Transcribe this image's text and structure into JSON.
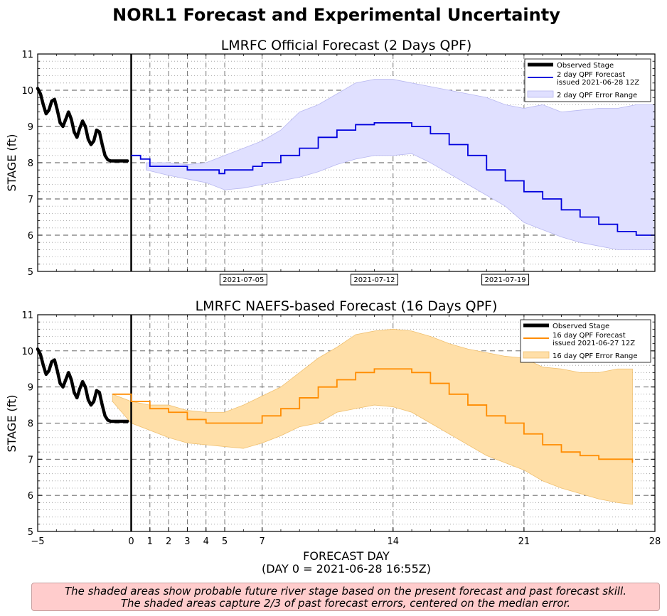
{
  "title": "NORL1 Forecast and Experimental Uncertainty",
  "note": {
    "line1": "The shaded areas show probable future river stage based on the present forecast and past forecast skill.",
    "line2": "The shaded areas capture 2/3 of past forecast errors, centered on the median error."
  },
  "xlabel": "FORECAST DAY",
  "xlabel2": "(DAY 0 = 2021-06-28 16:55Z)",
  "colors": {
    "observed": "#000000",
    "forecast2": "#0000dd",
    "band2": "#e0e0ff",
    "band2_edge": "#b8b8f0",
    "forecast16": "#ff8c00",
    "band16": "#ffdfa8",
    "band16_edge": "#f0c070"
  },
  "chart_data": [
    {
      "type": "line",
      "title": "LMRFC Official Forecast (2 Days QPF)",
      "ylabel": "STAGE (ft)",
      "xlim": [
        -5,
        28
      ],
      "ylim": [
        5,
        11
      ],
      "yticks": [
        5,
        6,
        7,
        8,
        9,
        10,
        11
      ],
      "xticks": [],
      "date_markers": [
        {
          "day": 6,
          "label": "2021-07-05"
        },
        {
          "day": 13,
          "label": "2021-07-12"
        },
        {
          "day": 20,
          "label": "2021-07-19"
        }
      ],
      "vlines_dashed": [
        1,
        2,
        3,
        4,
        5,
        7,
        14,
        21
      ],
      "grid": true,
      "legend": {
        "placement": "top-right",
        "entries": [
          "Observed Stage",
          "2 day QPF Forecast",
          "issued 2021-06-28 12Z",
          "2 day QPF Error Range"
        ]
      },
      "observed": {
        "name": "Observed Stage",
        "x": [
          -5,
          -4.85,
          -4.7,
          -4.55,
          -4.4,
          -4.25,
          -4.1,
          -3.95,
          -3.8,
          -3.65,
          -3.5,
          -3.35,
          -3.2,
          -3.05,
          -2.9,
          -2.75,
          -2.6,
          -2.45,
          -2.3,
          -2.15,
          -2.0,
          -1.85,
          -1.7,
          -1.55,
          -1.4,
          -1.25,
          -1.1,
          -0.95,
          -0.8,
          -0.65,
          -0.5,
          -0.35,
          -0.2
        ],
        "y": [
          10.05,
          9.9,
          9.6,
          9.35,
          9.45,
          9.7,
          9.75,
          9.45,
          9.1,
          9.0,
          9.2,
          9.4,
          9.2,
          8.85,
          8.7,
          8.95,
          9.15,
          9.0,
          8.65,
          8.5,
          8.6,
          8.9,
          8.85,
          8.5,
          8.2,
          8.08,
          8.05,
          8.05,
          8.05,
          8.05,
          8.05,
          8.05,
          8.05
        ]
      },
      "forecast": {
        "name": "2 day QPF Forecast issued 2021-06-28 12Z",
        "x": [
          0,
          0.5,
          1,
          2,
          3,
          4,
          4.7,
          5,
          6,
          6.5,
          7,
          8,
          9,
          10,
          11,
          12,
          13,
          14,
          15,
          16,
          17,
          18,
          19,
          20,
          21,
          22,
          23,
          24,
          25,
          26,
          27,
          28
        ],
        "y": [
          8.2,
          8.1,
          7.9,
          7.9,
          7.8,
          7.8,
          7.7,
          7.8,
          7.8,
          7.9,
          8.0,
          8.2,
          8.4,
          8.7,
          8.9,
          9.05,
          9.1,
          9.1,
          9.0,
          8.8,
          8.5,
          8.2,
          7.8,
          7.5,
          7.2,
          7.0,
          6.7,
          6.5,
          6.3,
          6.1,
          6.0,
          6.0
        ]
      },
      "band": {
        "name": "2 day QPF Error Range",
        "x": [
          0.8,
          2,
          3,
          4,
          5,
          6,
          7,
          8,
          9,
          10,
          11,
          12,
          13,
          14,
          15,
          16,
          17,
          18,
          19,
          20,
          21,
          22,
          23,
          24,
          25,
          26,
          27,
          28
        ],
        "upper": [
          8.0,
          8.0,
          7.95,
          8.0,
          8.2,
          8.4,
          8.6,
          8.9,
          9.4,
          9.6,
          9.9,
          10.2,
          10.3,
          10.3,
          10.2,
          10.1,
          10.0,
          9.9,
          9.8,
          9.6,
          9.5,
          9.6,
          9.4,
          9.45,
          9.5,
          9.5,
          9.6,
          9.6
        ],
        "lower": [
          7.8,
          7.65,
          7.55,
          7.45,
          7.25,
          7.3,
          7.4,
          7.5,
          7.6,
          7.75,
          7.95,
          8.1,
          8.2,
          8.2,
          8.25,
          8.0,
          7.7,
          7.4,
          7.1,
          6.8,
          6.35,
          6.15,
          5.95,
          5.8,
          5.7,
          5.6,
          5.6,
          5.6
        ]
      }
    },
    {
      "type": "line",
      "title": "LMRFC NAEFS-based Forecast (16 Days QPF)",
      "ylabel": "STAGE (ft)",
      "xlim": [
        -5,
        28
      ],
      "ylim": [
        5,
        11
      ],
      "yticks": [
        5,
        6,
        7,
        8,
        9,
        10,
        11
      ],
      "xticks": [
        -5,
        0,
        1,
        2,
        3,
        4,
        5,
        7,
        14,
        21,
        28
      ],
      "vlines_dashed": [
        1,
        2,
        3,
        4,
        5,
        7,
        14,
        21
      ],
      "grid": true,
      "legend": {
        "placement": "top-right",
        "entries": [
          "Observed Stage",
          "16 day QPF Forecast",
          "issued 2021-06-27 12Z",
          "16 day QPF Error Range"
        ]
      },
      "observed": {
        "name": "Observed Stage",
        "x": [
          -5,
          -4.85,
          -4.7,
          -4.55,
          -4.4,
          -4.25,
          -4.1,
          -3.95,
          -3.8,
          -3.65,
          -3.5,
          -3.35,
          -3.2,
          -3.05,
          -2.9,
          -2.75,
          -2.6,
          -2.45,
          -2.3,
          -2.15,
          -2.0,
          -1.85,
          -1.7,
          -1.55,
          -1.4,
          -1.25,
          -1.1,
          -0.95,
          -0.8,
          -0.65,
          -0.5,
          -0.35,
          -0.2
        ],
        "y": [
          10.05,
          9.9,
          9.6,
          9.35,
          9.45,
          9.7,
          9.75,
          9.45,
          9.1,
          9.0,
          9.2,
          9.4,
          9.2,
          8.85,
          8.7,
          8.95,
          9.15,
          9.0,
          8.65,
          8.5,
          8.6,
          8.9,
          8.85,
          8.5,
          8.2,
          8.08,
          8.05,
          8.05,
          8.05,
          8.05,
          8.05,
          8.05,
          8.05
        ]
      },
      "forecast": {
        "name": "16 day QPF Forecast issued 2021-06-27 12Z",
        "x": [
          -1,
          0,
          1,
          2,
          3,
          4,
          5,
          6,
          7,
          8,
          9,
          10,
          11,
          12,
          13,
          14,
          15,
          16,
          17,
          18,
          19,
          20,
          21,
          22,
          23,
          24,
          25,
          26,
          26.8
        ],
        "y": [
          8.8,
          8.6,
          8.4,
          8.3,
          8.1,
          8.0,
          8.0,
          8.0,
          8.2,
          8.4,
          8.7,
          9.0,
          9.2,
          9.4,
          9.5,
          9.5,
          9.4,
          9.1,
          8.8,
          8.5,
          8.2,
          8.0,
          7.7,
          7.4,
          7.2,
          7.1,
          7.0,
          7.0,
          6.9
        ]
      },
      "band": {
        "name": "16 day QPF Error Range",
        "x": [
          -1,
          0,
          1,
          2,
          3,
          4,
          5,
          6,
          7,
          8,
          9,
          10,
          11,
          12,
          13,
          14,
          15,
          16,
          17,
          18,
          19,
          20,
          21,
          22,
          23,
          24,
          25,
          26,
          26.8
        ],
        "upper": [
          8.8,
          8.6,
          8.5,
          8.5,
          8.35,
          8.3,
          8.3,
          8.5,
          8.75,
          9.0,
          9.4,
          9.8,
          10.1,
          10.45,
          10.55,
          10.6,
          10.55,
          10.4,
          10.2,
          10.05,
          9.95,
          9.85,
          9.8,
          9.55,
          9.5,
          9.4,
          9.4,
          9.5,
          9.5
        ],
        "lower": [
          8.6,
          8.0,
          7.8,
          7.6,
          7.45,
          7.4,
          7.35,
          7.3,
          7.45,
          7.65,
          7.9,
          8.0,
          8.3,
          8.4,
          8.5,
          8.45,
          8.3,
          8.0,
          7.7,
          7.4,
          7.1,
          6.9,
          6.7,
          6.4,
          6.2,
          6.05,
          5.9,
          5.8,
          5.75
        ]
      }
    }
  ]
}
